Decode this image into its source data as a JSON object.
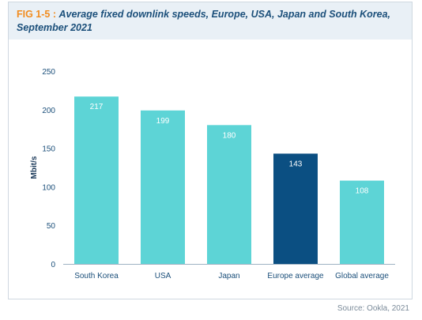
{
  "figure": {
    "label": "FIG 1-5",
    "separator": " : ",
    "title": "Average fixed downlink speeds, Europe, USA, Japan and South Korea, September 2021",
    "source": "Source: Ookla, 2021"
  },
  "colors": {
    "bar": "#5dd4d6",
    "highlight_bar": "#0b4f82",
    "bar_label": "#ffffff",
    "axis_text": "#1b4f7a",
    "ylabel_text": "#1b3a5a"
  },
  "chart_data": {
    "type": "bar",
    "categories": [
      "South Korea",
      "USA",
      "Japan",
      "Europe average",
      "Global average"
    ],
    "values": [
      217,
      199,
      180,
      143,
      108
    ],
    "highlight_index": 3,
    "ylabel": "Mbit/s",
    "xlabel": "",
    "ylim": [
      0,
      250
    ],
    "yticks": [
      0,
      50,
      100,
      150,
      200,
      250
    ],
    "grid": false,
    "legend": "none"
  }
}
